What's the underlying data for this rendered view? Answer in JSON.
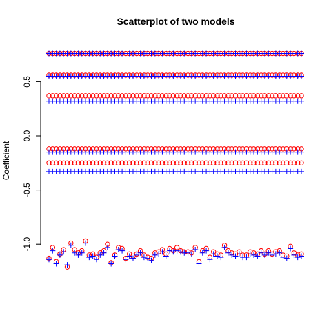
{
  "chart_data": {
    "type": "scatter",
    "title": "Scatterplot of two models",
    "xlabel": "",
    "ylabel": "Coefficient",
    "ylim": [
      -1.2,
      0.8
    ],
    "yticks": [
      "-1.0",
      "-0.5",
      "0.0",
      "0.5"
    ],
    "ytick_values": [
      -1.0,
      -0.5,
      0.0,
      0.5
    ],
    "x_count": 70,
    "x_axis_drawn": false,
    "grid": false,
    "legend": "none",
    "series": [
      {
        "marker": "circle",
        "color": "#ff0000",
        "constant_levels": [
          0.76,
          0.56,
          0.37,
          -0.12,
          -0.25
        ],
        "values": [
          -1.13,
          -1.03,
          -1.16,
          -1.09,
          -1.05,
          -1.21,
          -0.99,
          -1.05,
          -1.08,
          -1.06,
          -0.97,
          -1.1,
          -1.09,
          -1.12,
          -1.08,
          -1.06,
          -1.0,
          -1.17,
          -1.1,
          -1.03,
          -1.04,
          -1.13,
          -1.09,
          -1.11,
          -1.09,
          -1.06,
          -1.1,
          -1.12,
          -1.13,
          -1.08,
          -1.07,
          -1.05,
          -1.09,
          -1.04,
          -1.06,
          -1.03,
          -1.06,
          -1.07,
          -1.07,
          -1.08,
          -1.03,
          -1.16,
          -1.06,
          -1.04,
          -1.12,
          -1.07,
          -1.09,
          -1.1,
          -1.01,
          -1.06,
          -1.08,
          -1.09,
          -1.07,
          -1.1,
          -1.1,
          -1.07,
          -1.08,
          -1.09,
          -1.06,
          -1.09,
          -1.06,
          -1.09,
          -1.07,
          -1.06,
          -1.1,
          -1.11,
          -1.02,
          -1.08,
          -1.1,
          -1.09
        ]
      },
      {
        "marker": "plus",
        "color": "#0000ff",
        "constant_levels": [
          0.76,
          0.55,
          0.32,
          -0.15,
          -0.33
        ],
        "values": [
          -1.14,
          -1.06,
          -1.18,
          -1.1,
          -1.07,
          -1.19,
          -1.01,
          -1.08,
          -1.1,
          -1.08,
          -0.99,
          -1.12,
          -1.11,
          -1.14,
          -1.1,
          -1.08,
          -1.03,
          -1.18,
          -1.11,
          -1.05,
          -1.06,
          -1.14,
          -1.11,
          -1.13,
          -1.1,
          -1.08,
          -1.12,
          -1.13,
          -1.15,
          -1.1,
          -1.09,
          -1.07,
          -1.11,
          -1.06,
          -1.07,
          -1.06,
          -1.07,
          -1.08,
          -1.08,
          -1.09,
          -1.05,
          -1.18,
          -1.08,
          -1.06,
          -1.14,
          -1.09,
          -1.11,
          -1.12,
          -1.03,
          -1.08,
          -1.1,
          -1.11,
          -1.09,
          -1.12,
          -1.12,
          -1.09,
          -1.1,
          -1.11,
          -1.08,
          -1.1,
          -1.08,
          -1.1,
          -1.09,
          -1.08,
          -1.12,
          -1.13,
          -1.04,
          -1.1,
          -1.12,
          -1.11
        ]
      }
    ]
  }
}
